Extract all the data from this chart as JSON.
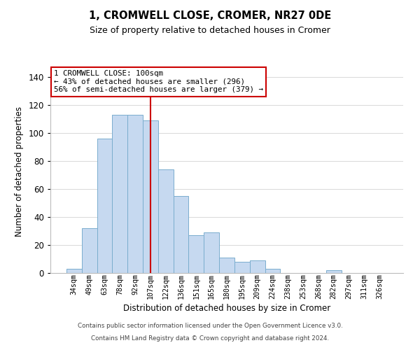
{
  "title": "1, CROMWELL CLOSE, CROMER, NR27 0DE",
  "subtitle": "Size of property relative to detached houses in Cromer",
  "xlabel": "Distribution of detached houses by size in Cromer",
  "ylabel": "Number of detached properties",
  "bar_labels": [
    "34sqm",
    "49sqm",
    "63sqm",
    "78sqm",
    "92sqm",
    "107sqm",
    "122sqm",
    "136sqm",
    "151sqm",
    "165sqm",
    "180sqm",
    "195sqm",
    "209sqm",
    "224sqm",
    "238sqm",
    "253sqm",
    "268sqm",
    "282sqm",
    "297sqm",
    "311sqm",
    "326sqm"
  ],
  "bar_values": [
    3,
    32,
    96,
    113,
    113,
    109,
    74,
    55,
    27,
    29,
    11,
    8,
    9,
    3,
    0,
    0,
    0,
    2,
    0,
    0,
    0
  ],
  "bar_color": "#c6d9f0",
  "bar_edge_color": "#7aadce",
  "vline_x": 5,
  "vline_color": "#cc0000",
  "annotation_text": "1 CROMWELL CLOSE: 100sqm\n← 43% of detached houses are smaller (296)\n56% of semi-detached houses are larger (379) →",
  "ylim": [
    0,
    145
  ],
  "yticks": [
    0,
    20,
    40,
    60,
    80,
    100,
    120,
    140
  ],
  "footer_line1": "Contains HM Land Registry data © Crown copyright and database right 2024.",
  "footer_line2": "Contains public sector information licensed under the Open Government Licence v3.0.",
  "background_color": "#ffffff",
  "grid_color": "#d8d8d8"
}
